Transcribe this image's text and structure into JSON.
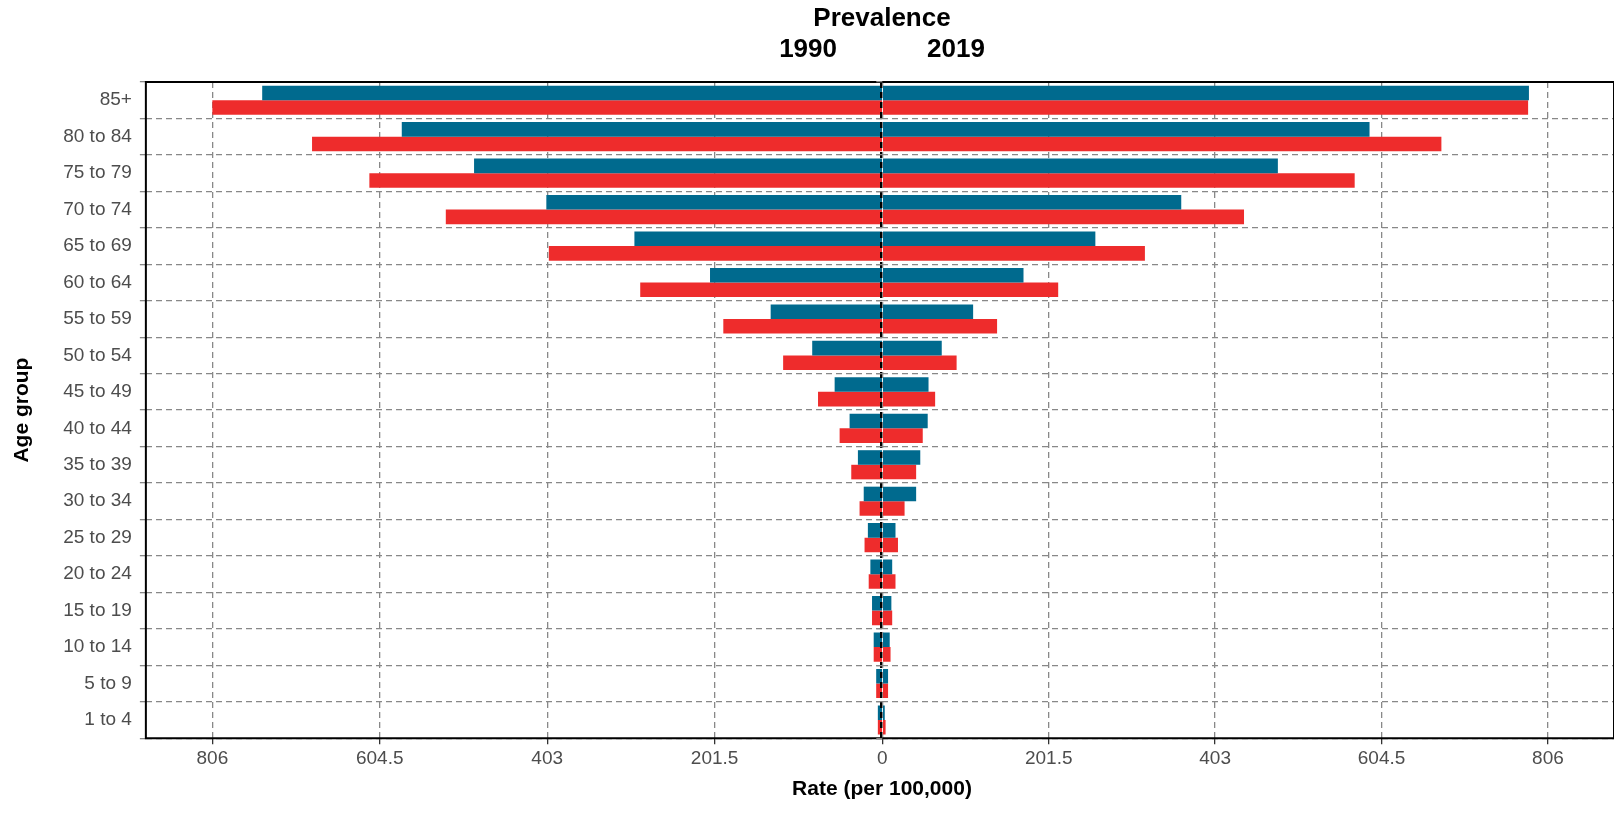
{
  "chart_data": [
    {
      "type": "bar",
      "orientation": "horizontal",
      "title": "Prevalence",
      "subtitle": "1990",
      "xlabel": "Rate (per 100,000)",
      "ylabel": "Age group",
      "categories": [
        "85+",
        "80 to 84",
        "75 to 79",
        "70 to 74",
        "65 to 69",
        "60 to 64",
        "55 to 59",
        "50 to 54",
        "45 to 49",
        "40 to 44",
        "35 to 39",
        "30 to 34",
        "25 to 29",
        "20 to 24",
        "15 to 19",
        "10 to 14",
        "5 to 9",
        "1 to 4"
      ],
      "series": [
        {
          "color": "#006a8e",
          "values": [
            746,
            578,
            491,
            404,
            298,
            207,
            134,
            84,
            57,
            39,
            29,
            22,
            17,
            14,
            12,
            10,
            7,
            5
          ]
        },
        {
          "color": "#ee2c2c",
          "values": [
            806,
            686,
            617,
            525,
            401,
            291,
            191,
            119,
            77,
            51,
            37,
            27,
            21,
            16,
            12,
            10,
            7,
            5
          ]
        }
      ],
      "xlim": [
        886,
        0
      ],
      "xticks": [
        806,
        604.5,
        403,
        201.5
      ],
      "ref_lines": [
        {
          "axis": "x",
          "value": 0,
          "color": "#000000",
          "line_style": "dashed"
        }
      ],
      "grid": true,
      "legend": false
    },
    {
      "type": "bar",
      "orientation": "horizontal",
      "subtitle": "2019",
      "categories": [
        null,
        null,
        null,
        null,
        null,
        null,
        null,
        null,
        null,
        null,
        null,
        null,
        null,
        null,
        null,
        null,
        null,
        null
      ],
      "series": [
        {
          "color": "#006a8e",
          "values": [
            783,
            590,
            479,
            362,
            258,
            171,
            110,
            72,
            56,
            55,
            46,
            41,
            16,
            12,
            11,
            9,
            7,
            3
          ]
        },
        {
          "color": "#ee2c2c",
          "values": [
            782,
            677,
            572,
            438,
            318,
            213,
            139,
            90,
            64,
            49,
            41,
            27,
            19,
            16,
            12,
            10,
            7,
            4
          ]
        }
      ],
      "xlim": [
        0,
        886
      ],
      "xticks": [
        0,
        201.5,
        403,
        604.5,
        806
      ],
      "grid": true,
      "legend": false,
      "tick_labels": "x"
    }
  ]
}
